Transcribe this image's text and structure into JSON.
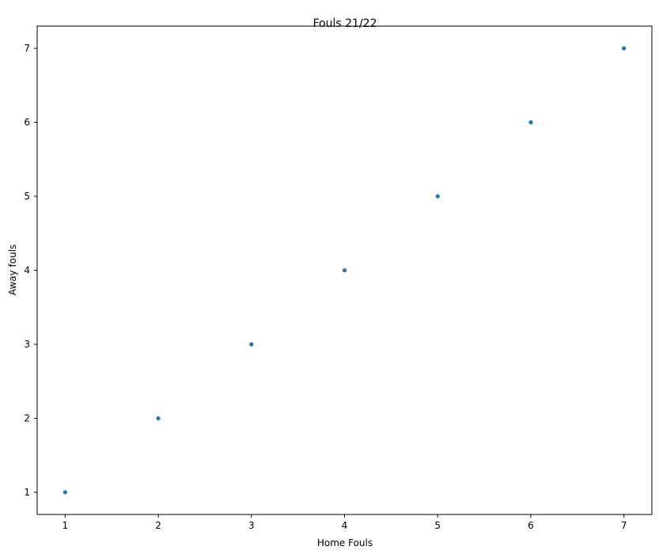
{
  "chart_data": {
    "type": "scatter",
    "title": "Fouls 21/22",
    "xlabel": "Home Fouls",
    "ylabel": "Away fouls",
    "x": [
      1,
      2,
      3,
      4,
      5,
      6,
      7
    ],
    "y": [
      1,
      2,
      3,
      4,
      5,
      6,
      7
    ],
    "xlim": [
      0.7,
      7.3
    ],
    "ylim": [
      0.7,
      7.3
    ],
    "xticks": [
      1,
      2,
      3,
      4,
      5,
      6,
      7
    ],
    "yticks": [
      1,
      2,
      3,
      4,
      5,
      6,
      7
    ],
    "grid": false,
    "marker_color": "#1f77b4"
  }
}
